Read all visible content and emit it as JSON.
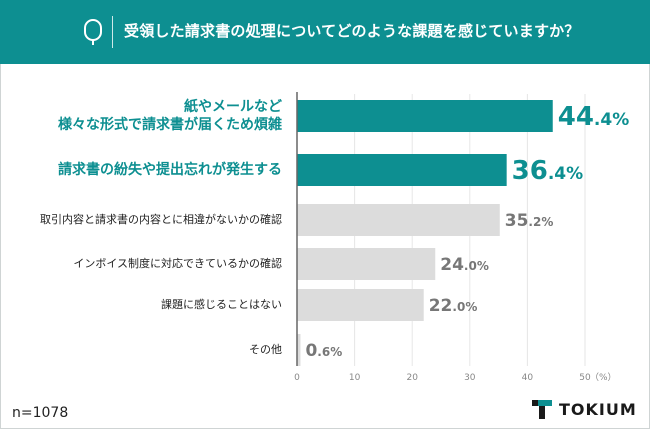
{
  "header": {
    "question": "受領した請求書の処理についてどのような課題を感じていますか？",
    "badge_letter": "Q"
  },
  "footer": {
    "sample_size": "n=1078",
    "brand": "TOKIUM"
  },
  "colors": {
    "header_bg": "#0d8f91",
    "highlight": "#0d8f91",
    "normal_bar": "#dcdcdc",
    "normal_value": "#777777",
    "normal_label": "#222222"
  },
  "chart_data": {
    "type": "bar",
    "orientation": "horizontal",
    "categories": [
      [
        "紙やメールなど",
        "様々な形式で請求書が届くため煩雑"
      ],
      [
        "請求書の紛失や提出忘れが発生する"
      ],
      [
        "取引内容と請求書の内容とに相違がないかの確認"
      ],
      [
        "インボイス制度に対応できているかの確認"
      ],
      [
        "課題に感じることはない"
      ],
      [
        "その他"
      ]
    ],
    "values": [
      44.4,
      36.4,
      35.2,
      24.0,
      22.0,
      0.6
    ],
    "value_labels": [
      {
        "whole": "44",
        "decimal": ".4",
        "unit": "%"
      },
      {
        "whole": "36",
        "decimal": ".4",
        "unit": "%"
      },
      {
        "whole": "35",
        "decimal": ".2",
        "unit": "%"
      },
      {
        "whole": "24",
        "decimal": ".0",
        "unit": "%"
      },
      {
        "whole": "22",
        "decimal": ".0",
        "unit": "%"
      },
      {
        "whole": "0",
        "decimal": ".6",
        "unit": "%"
      }
    ],
    "highlighted": [
      true,
      true,
      false,
      false,
      false,
      false
    ],
    "xlim": [
      0,
      50
    ],
    "xticks": [
      "0",
      "10",
      "20",
      "30",
      "40",
      "50"
    ],
    "x_unit": "（%）",
    "grid": true
  }
}
